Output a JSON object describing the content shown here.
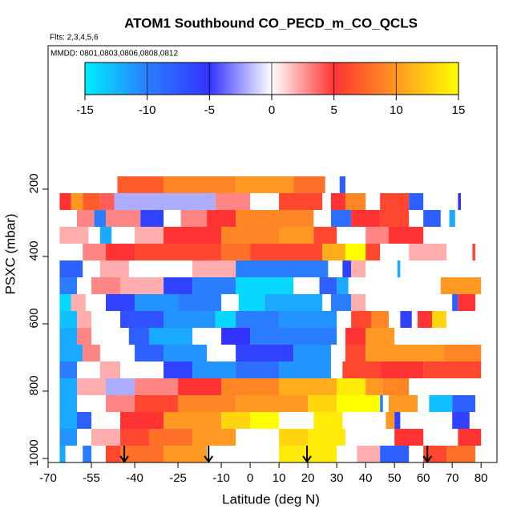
{
  "chart_data": {
    "type": "heatmap",
    "title": "ATOM1 Southbound CO_PECD_m_CO_QCLS",
    "subtitle": "Flts: 2,3,4,5,6",
    "annotation": "MMDD: 0801,0803,0806,0808,0812",
    "x_label": "Latitude (deg N)",
    "y_label": "PSXC (mbar)",
    "xlim": [
      -70,
      85.5
    ],
    "xticks": [
      -70,
      -55,
      -40,
      -25,
      -10,
      0,
      10,
      20,
      30,
      40,
      50,
      60,
      70,
      80
    ],
    "ylim": [
      1012,
      -226
    ],
    "yticks": [
      200,
      400,
      600,
      800,
      1000
    ],
    "clim": [
      -15,
      15
    ],
    "colorbar_ticks": [
      -15,
      -10,
      -5,
      0,
      5,
      10,
      15
    ],
    "colormap": [
      [
        -15,
        "#00eeff"
      ],
      [
        -10,
        "#2a7dff"
      ],
      [
        -5,
        "#3333ff"
      ],
      [
        0,
        "#ffffff"
      ],
      [
        5,
        "#ff3333"
      ],
      [
        10,
        "#ff9922"
      ],
      [
        15,
        "#ffff00"
      ]
    ],
    "arrows_lat": [
      -43.6,
      -14.4,
      19.7,
      61.4
    ],
    "rows": [
      {
        "p": [
          162,
          212
        ],
        "segments": [
          [
            -46,
            -30,
            7
          ],
          [
            -30,
            -5,
            9
          ],
          [
            -5,
            15,
            10
          ],
          [
            15,
            26,
            8
          ],
          [
            31,
            33,
            -8
          ]
        ]
      },
      {
        "p": [
          212,
          262
        ],
        "segments": [
          [
            -66,
            -62,
            5
          ],
          [
            -62,
            -58,
            10
          ],
          [
            -58,
            -52,
            7
          ],
          [
            -52,
            -47,
            4
          ],
          [
            -47,
            -12,
            -2
          ],
          [
            -12,
            0,
            3
          ],
          [
            10,
            25,
            6
          ],
          [
            28,
            33,
            5
          ],
          [
            33,
            40,
            9
          ],
          [
            45,
            55,
            6
          ],
          [
            55,
            60,
            -8
          ],
          [
            72,
            73,
            -5
          ]
        ]
      },
      {
        "p": [
          262,
          312
        ],
        "segments": [
          [
            -60,
            -54,
            3
          ],
          [
            -54,
            -50,
            -10
          ],
          [
            -50,
            -38,
            3
          ],
          [
            -38,
            -30,
            -6
          ],
          [
            -24,
            -15,
            3
          ],
          [
            -15,
            -5,
            5
          ],
          [
            -5,
            22,
            9
          ],
          [
            28,
            35,
            -9
          ],
          [
            35,
            45,
            5
          ],
          [
            45,
            55,
            6
          ],
          [
            60,
            66,
            -8
          ],
          [
            69,
            71,
            -12
          ]
        ]
      },
      {
        "p": [
          312,
          362
        ],
        "segments": [
          [
            -66,
            -56,
            2
          ],
          [
            -52,
            -48,
            -12
          ],
          [
            -40,
            -30,
            2
          ],
          [
            -30,
            -10,
            5
          ],
          [
            -10,
            10,
            9
          ],
          [
            10,
            22,
            10
          ],
          [
            22,
            30,
            6
          ],
          [
            40,
            48,
            3
          ],
          [
            48,
            60,
            5
          ]
        ]
      },
      {
        "p": [
          362,
          412
        ],
        "segments": [
          [
            -58,
            -50,
            3
          ],
          [
            -50,
            -40,
            5
          ],
          [
            -40,
            -10,
            6
          ],
          [
            -10,
            0,
            8
          ],
          [
            0,
            25,
            6
          ],
          [
            25,
            33,
            11
          ],
          [
            33,
            40,
            15
          ],
          [
            40,
            45,
            6
          ],
          [
            55,
            68,
            2
          ],
          [
            77,
            78,
            6
          ]
        ]
      },
      {
        "p": [
          412,
          462
        ],
        "segments": [
          [
            -66,
            -58,
            -8
          ],
          [
            -52,
            -42,
            2
          ],
          [
            -20,
            -5,
            2
          ],
          [
            -5,
            27,
            -10
          ],
          [
            32,
            35,
            -6
          ],
          [
            35,
            40,
            2
          ],
          [
            51,
            52,
            -12
          ]
        ]
      },
      {
        "p": [
          462,
          512
        ],
        "segments": [
          [
            -66,
            -60,
            -10
          ],
          [
            -55,
            -45,
            3
          ],
          [
            -45,
            -30,
            2
          ],
          [
            -30,
            -20,
            -6
          ],
          [
            -20,
            -5,
            -10
          ],
          [
            -5,
            15,
            -14
          ],
          [
            24,
            30,
            -8
          ],
          [
            30,
            34,
            -12
          ],
          [
            66,
            80,
            10
          ]
        ]
      },
      {
        "p": [
          512,
          562
        ],
        "segments": [
          [
            -66,
            -62,
            -14
          ],
          [
            -62,
            -57,
            2
          ],
          [
            -50,
            -40,
            -6
          ],
          [
            -40,
            -25,
            -11
          ],
          [
            -25,
            -10,
            -10
          ],
          [
            -4,
            5,
            -14
          ],
          [
            5,
            25,
            -12
          ],
          [
            28,
            35,
            -10
          ],
          [
            35,
            40,
            2
          ],
          [
            70,
            72,
            -8
          ],
          [
            72,
            78,
            5
          ]
        ]
      },
      {
        "p": [
          562,
          612
        ],
        "segments": [
          [
            -66,
            -60,
            -13
          ],
          [
            -60,
            -55,
            2
          ],
          [
            -45,
            -30,
            -7
          ],
          [
            -30,
            -12,
            -11
          ],
          [
            -12,
            -5,
            -14
          ],
          [
            -5,
            10,
            -10
          ],
          [
            10,
            30,
            -11
          ],
          [
            35,
            42,
            6
          ],
          [
            42,
            48,
            9
          ],
          [
            52,
            56,
            -6
          ],
          [
            58,
            63,
            5
          ],
          [
            63,
            68,
            13
          ]
        ]
      },
      {
        "p": [
          612,
          662
        ],
        "segments": [
          [
            -66,
            -60,
            -12
          ],
          [
            -60,
            -55,
            3
          ],
          [
            -42,
            -35,
            -8
          ],
          [
            -35,
            -20,
            -12
          ],
          [
            -10,
            0,
            -5
          ],
          [
            0,
            30,
            -10
          ],
          [
            33,
            40,
            5
          ],
          [
            40,
            50,
            10
          ]
        ]
      },
      {
        "p": [
          662,
          712
        ],
        "segments": [
          [
            -66,
            -58,
            -12
          ],
          [
            -58,
            -52,
            3
          ],
          [
            -40,
            -30,
            -8
          ],
          [
            -30,
            -15,
            -11
          ],
          [
            -5,
            15,
            -6
          ],
          [
            15,
            28,
            -11
          ],
          [
            33,
            40,
            6
          ],
          [
            40,
            67,
            10
          ],
          [
            67,
            80,
            9
          ]
        ]
      },
      {
        "p": [
          712,
          762
        ],
        "segments": [
          [
            -66,
            -60,
            -10
          ],
          [
            -52,
            -45,
            2
          ],
          [
            -30,
            -20,
            -6
          ],
          [
            -20,
            -5,
            -11
          ],
          [
            -5,
            10,
            -9
          ],
          [
            10,
            28,
            -11
          ],
          [
            32,
            45,
            6
          ],
          [
            45,
            60,
            5
          ],
          [
            60,
            80,
            6
          ]
        ]
      },
      {
        "p": [
          762,
          812
        ],
        "segments": [
          [
            -66,
            -60,
            -12
          ],
          [
            -60,
            -50,
            2
          ],
          [
            -50,
            -40,
            -2
          ],
          [
            -40,
            -25,
            3
          ],
          [
            -25,
            -10,
            5
          ],
          [
            -10,
            10,
            9
          ],
          [
            10,
            30,
            11
          ],
          [
            30,
            40,
            14
          ],
          [
            40,
            46,
            10
          ],
          [
            46,
            55,
            9
          ]
        ]
      },
      {
        "p": [
          812,
          862
        ],
        "segments": [
          [
            -66,
            -60,
            -12
          ],
          [
            -50,
            -40,
            3
          ],
          [
            -40,
            -25,
            6
          ],
          [
            -25,
            -5,
            9
          ],
          [
            -5,
            20,
            10
          ],
          [
            20,
            30,
            13
          ],
          [
            30,
            45,
            15
          ],
          [
            45,
            46,
            -10
          ],
          [
            48,
            58,
            10
          ],
          [
            62,
            70,
            -13
          ],
          [
            70,
            78,
            -8
          ]
        ]
      },
      {
        "p": [
          862,
          912
        ],
        "segments": [
          [
            -66,
            -60,
            -12
          ],
          [
            -60,
            -55,
            -8
          ],
          [
            -45,
            -30,
            5
          ],
          [
            -30,
            -10,
            10
          ],
          [
            -10,
            0,
            13
          ],
          [
            0,
            10,
            15
          ],
          [
            22,
            32,
            14
          ],
          [
            47,
            50,
            10
          ],
          [
            50,
            52,
            -6
          ],
          [
            70,
            76,
            -6
          ]
        ]
      },
      {
        "p": [
          912,
          962
        ],
        "segments": [
          [
            -66,
            -60,
            -11
          ],
          [
            -55,
            -45,
            2
          ],
          [
            -45,
            -35,
            6
          ],
          [
            -35,
            -20,
            8
          ],
          [
            -20,
            -5,
            10
          ],
          [
            10,
            20,
            13
          ],
          [
            20,
            33,
            14
          ],
          [
            50,
            60,
            5
          ],
          [
            72,
            80,
            5
          ]
        ]
      },
      {
        "p": [
          962,
          1012
        ],
        "segments": [
          [
            -66,
            -64,
            -12
          ],
          [
            -58,
            -55,
            -10
          ],
          [
            -50,
            -45,
            6
          ],
          [
            -45,
            -30,
            8
          ],
          [
            -30,
            -15,
            10
          ],
          [
            10,
            30,
            14
          ],
          [
            37,
            45,
            2
          ],
          [
            45,
            55,
            -8
          ],
          [
            60,
            68,
            6
          ],
          [
            68,
            78,
            8
          ]
        ]
      }
    ]
  }
}
